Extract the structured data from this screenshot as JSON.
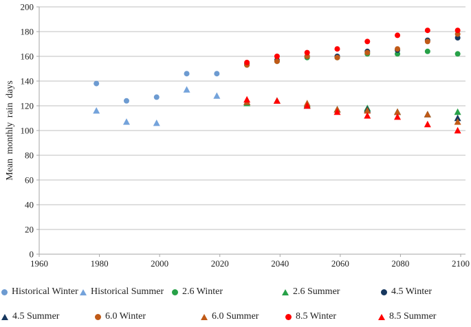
{
  "chart_data": {
    "type": "scatter",
    "title": "",
    "xlabel": "",
    "ylabel": "Mean monthly rain days",
    "xlim": [
      1960,
      2100
    ],
    "ylim": [
      0,
      200
    ],
    "xticks": [
      1960,
      1980,
      2000,
      2020,
      2040,
      2060,
      2080,
      2100
    ],
    "yticks": [
      0,
      20,
      40,
      60,
      80,
      100,
      120,
      140,
      160,
      180,
      200
    ],
    "grid": "horizontal",
    "legend_position": "bottom",
    "series": [
      {
        "name": "Historical Winter",
        "marker": "circle",
        "color": "#6D9BD1",
        "x": [
          1979,
          1989,
          1999,
          2009,
          2019
        ],
        "y": [
          138,
          124,
          127,
          146,
          146
        ]
      },
      {
        "name": "Historical Summer",
        "marker": "triangle",
        "color": "#74A3DB",
        "x": [
          1979,
          1989,
          1999,
          2009,
          2019
        ],
        "y": [
          116,
          107,
          106,
          133,
          128
        ]
      },
      {
        "name": "2.6 Winter",
        "marker": "circle",
        "color": "#27A148",
        "x": [
          2029,
          2039,
          2049,
          2059,
          2069,
          2079,
          2089,
          2099
        ],
        "y": [
          153,
          156,
          159,
          159,
          162,
          162,
          164,
          162
        ]
      },
      {
        "name": "2.6 Summer",
        "marker": "triangle",
        "color": "#27A148",
        "x": [
          2029,
          2039,
          2049,
          2059,
          2069,
          2079,
          2089,
          2099
        ],
        "y": [
          122,
          124,
          121,
          117,
          118,
          115,
          113,
          115
        ]
      },
      {
        "name": "4.5 Winter",
        "marker": "circle",
        "color": "#17375E",
        "x": [
          2029,
          2039,
          2049,
          2059,
          2069,
          2079,
          2089,
          2099
        ],
        "y": [
          154,
          157,
          160,
          160,
          164,
          165,
          173,
          175
        ]
      },
      {
        "name": "4.5 Summer",
        "marker": "triangle",
        "color": "#17375E",
        "x": [
          2029,
          2039,
          2049,
          2059,
          2069,
          2079,
          2089,
          2099
        ],
        "y": [
          123,
          124,
          120,
          117,
          117,
          115,
          113,
          110
        ]
      },
      {
        "name": "6.0 Winter",
        "marker": "circle",
        "color": "#C05A17",
        "x": [
          2029,
          2039,
          2049,
          2059,
          2069,
          2079,
          2089,
          2099
        ],
        "y": [
          153,
          156,
          160,
          159,
          163,
          166,
          172,
          178
        ]
      },
      {
        "name": "6.0 Summer",
        "marker": "triangle",
        "color": "#C05A17",
        "x": [
          2029,
          2039,
          2049,
          2059,
          2069,
          2079,
          2089,
          2099
        ],
        "y": [
          123,
          124,
          122,
          117,
          116,
          115,
          113,
          107
        ]
      },
      {
        "name": "8.5 Winter",
        "marker": "circle",
        "color": "#FF0000",
        "x": [
          2029,
          2039,
          2049,
          2059,
          2069,
          2079,
          2089,
          2099
        ],
        "y": [
          155,
          160,
          163,
          166,
          172,
          177,
          181,
          181
        ]
      },
      {
        "name": "8.5 Summer",
        "marker": "triangle",
        "color": "#FF0000",
        "x": [
          2029,
          2039,
          2049,
          2059,
          2069,
          2079,
          2089,
          2099
        ],
        "y": [
          125,
          124,
          120,
          115,
          112,
          111,
          105,
          100
        ]
      }
    ]
  },
  "legend": {
    "rows": [
      [
        {
          "label": "Historical Winter",
          "marker": "circle",
          "color": "#6D9BD1"
        },
        {
          "label": "Historical Summer",
          "marker": "triangle",
          "color": "#74A3DB"
        },
        {
          "label": "2.6 Winter",
          "marker": "circle",
          "color": "#27A148"
        },
        {
          "label": "2.6 Summer",
          "marker": "triangle",
          "color": "#27A148"
        },
        {
          "label": "4.5 Winter",
          "marker": "circle",
          "color": "#17375E"
        }
      ],
      [
        {
          "label": "4.5 Summer",
          "marker": "triangle",
          "color": "#17375E"
        },
        {
          "label": "6.0 Winter",
          "marker": "circle",
          "color": "#C05A17"
        },
        {
          "label": "6.0 Summer",
          "marker": "triangle",
          "color": "#C05A17"
        },
        {
          "label": "8.5 Winter",
          "marker": "circle",
          "color": "#FF0000"
        },
        {
          "label": "8.5 Summer",
          "marker": "triangle",
          "color": "#FF0000"
        }
      ]
    ]
  },
  "colors": {
    "grid": "#BFBFBF",
    "axis": "#A6A6A6",
    "text": "#1f1f1f",
    "background": "#FFFFFF"
  }
}
